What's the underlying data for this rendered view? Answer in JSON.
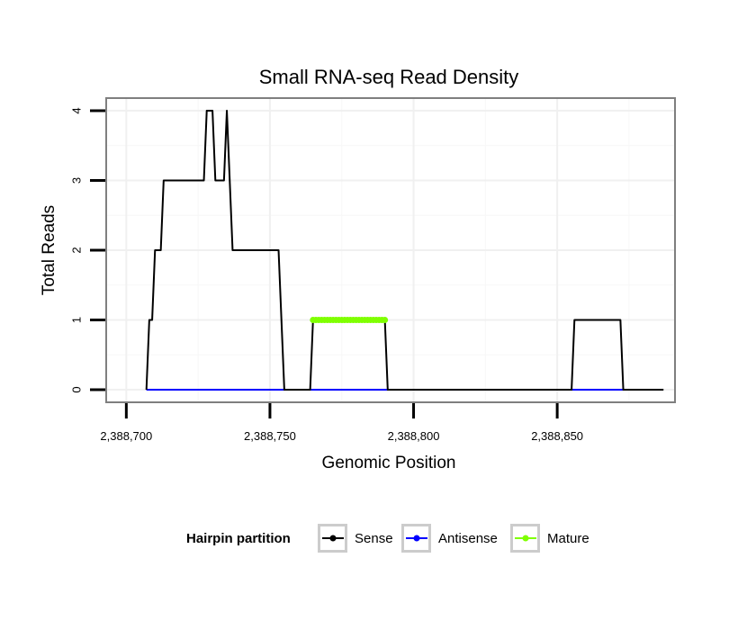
{
  "chart_data": {
    "type": "line",
    "title": "Small RNA-seq Read Density",
    "xlabel": "Genomic Position",
    "ylabel": "Total Reads",
    "xlim": [
      2388693,
      2388891
    ],
    "ylim": [
      -0.18,
      4.18
    ],
    "x_ticks": [
      2388700,
      2388750,
      2388800,
      2388850
    ],
    "x_tick_labels": [
      "2,388,700",
      "2,388,750",
      "2,388,800",
      "2,388,850"
    ],
    "y_ticks": [
      0,
      1,
      2,
      3,
      4
    ],
    "y_tick_labels": [
      "0",
      "1",
      "2",
      "3",
      "4"
    ],
    "grid": true,
    "legend": {
      "title": "Hairpin partition",
      "position": "bottom",
      "entries": [
        "Sense",
        "Antisense",
        "Mature"
      ]
    },
    "series": [
      {
        "name": "Sense",
        "color": "#000000",
        "x": [
          2388707,
          2388708,
          2388709,
          2388710,
          2388711,
          2388712,
          2388713,
          2388727,
          2388728,
          2388730,
          2388731,
          2388734,
          2388735,
          2388737,
          2388753,
          2388755,
          2388764,
          2388765,
          2388790,
          2388791,
          2388855,
          2388856,
          2388872,
          2388873,
          2388887
        ],
        "values": [
          0,
          1,
          1,
          2,
          2,
          2,
          3,
          3,
          4,
          4,
          3,
          3,
          4,
          2,
          2,
          0,
          0,
          1,
          1,
          0,
          0,
          1,
          1,
          0,
          0
        ]
      },
      {
        "name": "Antisense",
        "color": "#0000ff",
        "x": [
          2388707,
          2388873
        ],
        "values": [
          0,
          0
        ]
      },
      {
        "name": "Mature",
        "color": "#7fff00",
        "x": [
          2388765,
          2388766,
          2388767,
          2388768,
          2388769,
          2388770,
          2388771,
          2388772,
          2388773,
          2388774,
          2388775,
          2388776,
          2388777,
          2388778,
          2388779,
          2388780,
          2388781,
          2388782,
          2388783,
          2388784,
          2388785,
          2388786,
          2388787,
          2388788,
          2388789,
          2388790
        ],
        "values": [
          1,
          1,
          1,
          1,
          1,
          1,
          1,
          1,
          1,
          1,
          1,
          1,
          1,
          1,
          1,
          1,
          1,
          1,
          1,
          1,
          1,
          1,
          1,
          1,
          1,
          1
        ]
      }
    ]
  }
}
